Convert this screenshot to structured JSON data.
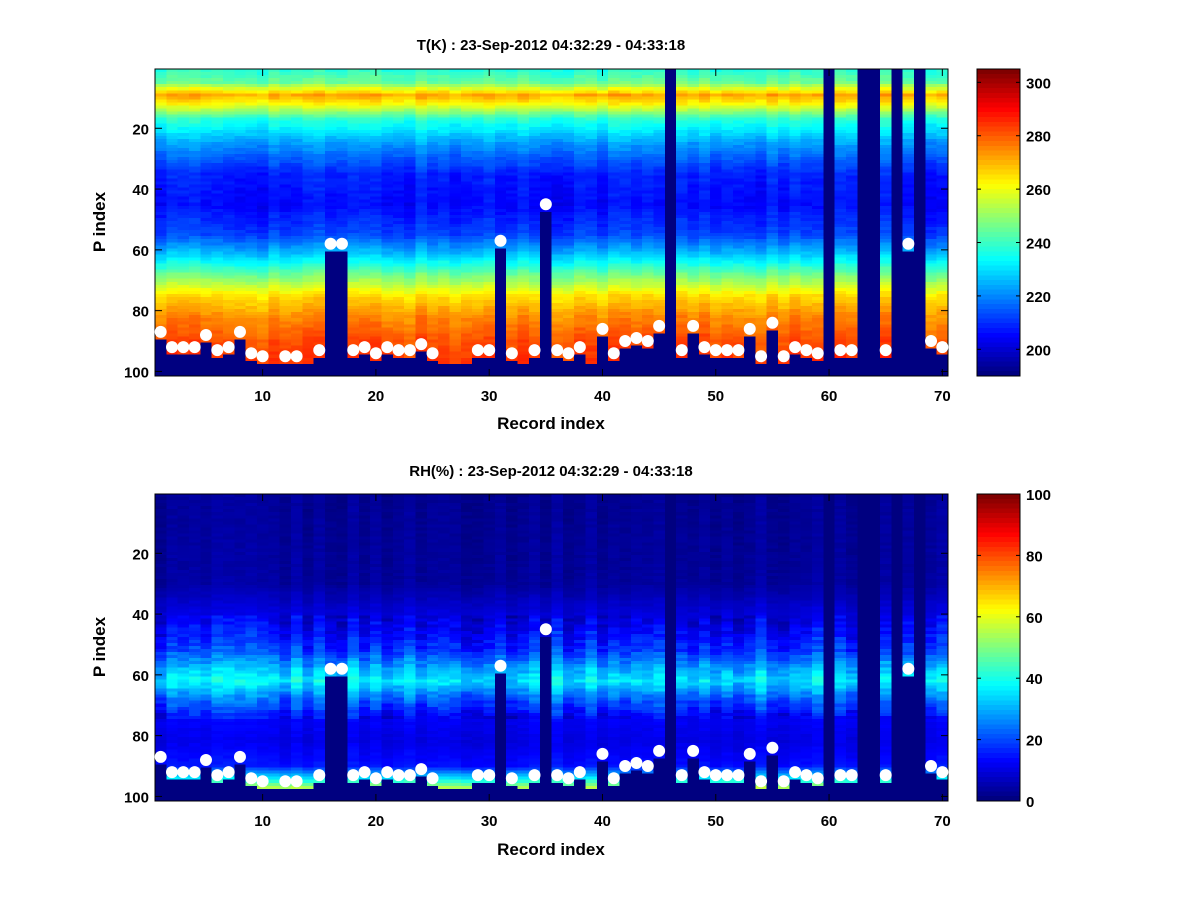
{
  "chart_data": [
    {
      "type": "heatmap",
      "title": "T(K) : 23-Sep-2012 04:32:29 - 04:33:18",
      "xlabel": "Record index",
      "ylabel": "P index",
      "xlim": [
        0.5,
        70.5
      ],
      "ylim": [
        0.5,
        101.5
      ],
      "xticks": [
        10,
        20,
        30,
        40,
        50,
        60,
        70
      ],
      "yticks": [
        20,
        40,
        60,
        80,
        100
      ],
      "colorbar": {
        "range": [
          190,
          305
        ],
        "ticks": [
          200,
          220,
          240,
          260,
          280,
          300
        ]
      },
      "colormap": "jet",
      "profile_p_index": [
        1,
        5,
        9,
        12,
        17,
        25,
        35,
        45,
        55,
        62,
        68,
        75,
        82,
        90,
        97
      ],
      "profile_values": [
        238,
        245,
        272,
        262,
        238,
        222,
        208,
        205,
        212,
        228,
        245,
        265,
        275,
        282,
        285
      ],
      "below_surface_value": 190
    },
    {
      "type": "heatmap",
      "title": "RH(%) : 23-Sep-2012 04:32:29 - 04:33:18",
      "xlabel": "Record index",
      "ylabel": "P index",
      "xlim": [
        0.5,
        70.5
      ],
      "ylim": [
        0.5,
        101.5
      ],
      "xticks": [
        10,
        20,
        30,
        40,
        50,
        60,
        70
      ],
      "yticks": [
        20,
        40,
        60,
        80,
        100
      ],
      "colorbar": {
        "range": [
          0,
          100
        ],
        "ticks": [
          0,
          20,
          40,
          60,
          80,
          100
        ]
      },
      "colormap": "jet",
      "profile_p_index": [
        1,
        30,
        38,
        45,
        52,
        58,
        62,
        68,
        74,
        82,
        90,
        94,
        97
      ],
      "profile_values": [
        2,
        3,
        8,
        12,
        18,
        30,
        36,
        22,
        12,
        10,
        14,
        35,
        55
      ],
      "below_surface_value": 0
    }
  ],
  "records": {
    "surface_marker_index": [
      87,
      92,
      92,
      92,
      88,
      93,
      92,
      87,
      94,
      95,
      null,
      95,
      95,
      null,
      93,
      58,
      58,
      93,
      92,
      94,
      92,
      93,
      93,
      91,
      94,
      null,
      null,
      null,
      93,
      93,
      57,
      94,
      null,
      93,
      45,
      93,
      94,
      92,
      null,
      86,
      94,
      90,
      89,
      90,
      85,
      null,
      93,
      85,
      92,
      93,
      93,
      93,
      86,
      95,
      84,
      95,
      92,
      93,
      94,
      null,
      93,
      93,
      null,
      null,
      93,
      null,
      58,
      null,
      90,
      92
    ],
    "invalid_records": [
      46,
      60,
      63,
      64,
      66,
      68
    ],
    "marker_color": "#ffffff"
  }
}
